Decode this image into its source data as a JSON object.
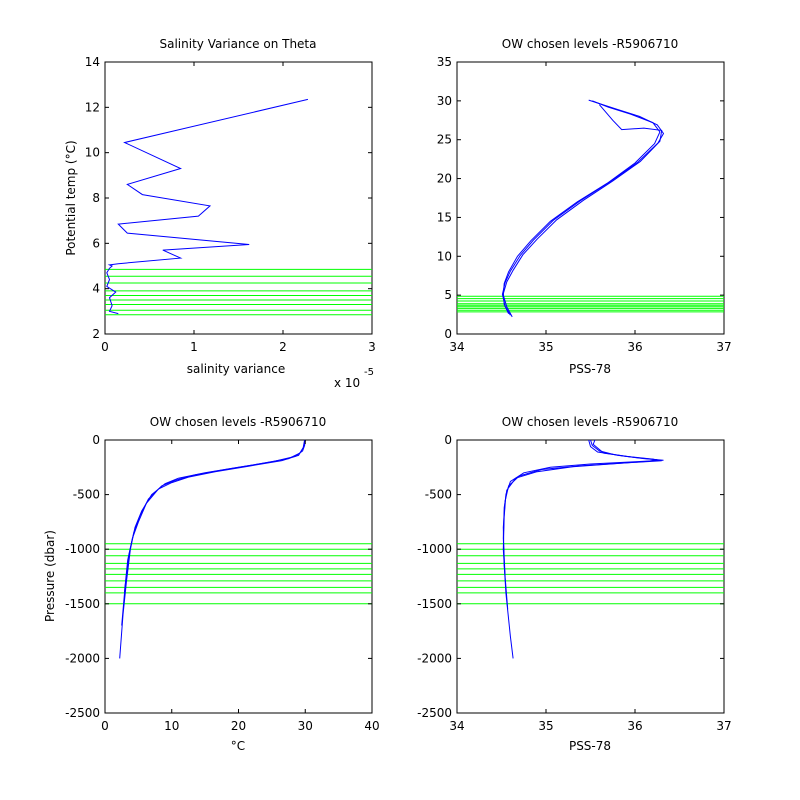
{
  "chart_data": [
    {
      "type": "line",
      "title": "Salinity Variance on Theta",
      "xlabel": "salinity variance",
      "ylabel": "Potential temp (°C)",
      "x_exponent_label": "x 10",
      "x_exponent_power": "-5",
      "xlim": [
        0,
        3
      ],
      "ylim": [
        2,
        14
      ],
      "xticks": [
        0,
        1,
        2,
        3
      ],
      "yticks": [
        2,
        4,
        6,
        8,
        10,
        12,
        14
      ],
      "grid": false,
      "line_color": "#0000ff",
      "hline_color": "#00ff00",
      "hlines": [
        2.85,
        3.05,
        3.3,
        3.5,
        3.7,
        3.9,
        4.25,
        4.55,
        4.85
      ],
      "series": [
        {
          "x": [
            0.15,
            0.05,
            0.08,
            0.05,
            0.12,
            0.02,
            0.05,
            0.02,
            0.05,
            0.08,
            0.05,
            0.15,
            0.85,
            0.65,
            1.62,
            0.25,
            0.15,
            1.05,
            1.18,
            0.42,
            0.25,
            0.85,
            0.22,
            2.28
          ],
          "y": [
            2.9,
            3.0,
            3.25,
            3.6,
            3.85,
            4.1,
            4.4,
            4.7,
            4.9,
            5.0,
            5.05,
            5.1,
            5.35,
            5.7,
            5.95,
            6.45,
            6.85,
            7.2,
            7.65,
            8.15,
            8.6,
            9.3,
            10.45,
            12.35
          ]
        }
      ]
    },
    {
      "type": "line",
      "title": "OW chosen levels -R5906710",
      "xlabel": "PSS-78",
      "ylabel": "",
      "xlim": [
        34,
        37
      ],
      "ylim": [
        0,
        35
      ],
      "xticks": [
        34,
        35,
        36,
        37
      ],
      "yticks": [
        0,
        5,
        10,
        15,
        20,
        25,
        30,
        35
      ],
      "grid": false,
      "line_color": "#0000ff",
      "hline_color": "#00ff00",
      "hlines": [
        2.85,
        3.05,
        3.3,
        3.5,
        3.7,
        3.9,
        4.25,
        4.55,
        4.85
      ],
      "series": [
        {
          "x": [
            34.62,
            34.56,
            34.52,
            34.53,
            34.58,
            34.68,
            34.83,
            35.05,
            35.35,
            35.7,
            36.0,
            36.22,
            36.28,
            36.2,
            35.95,
            35.7,
            35.52
          ],
          "y": [
            2.2,
            3.5,
            5.0,
            6.5,
            8.0,
            10.0,
            12.0,
            14.5,
            17.0,
            19.5,
            22.0,
            24.5,
            26.0,
            27.2,
            28.3,
            29.2,
            30.0
          ]
        },
        {
          "x": [
            34.6,
            34.54,
            34.51,
            34.54,
            34.6,
            34.71,
            34.86,
            35.08,
            35.38,
            35.72,
            36.03,
            36.26,
            36.32,
            36.25,
            36.05,
            35.8,
            35.48
          ],
          "y": [
            2.4,
            3.6,
            5.1,
            6.6,
            8.1,
            10.1,
            12.1,
            14.6,
            17.1,
            19.6,
            22.1,
            24.6,
            25.8,
            26.9,
            28.0,
            28.9,
            30.1
          ]
        },
        {
          "x": [
            34.58,
            34.53,
            34.52,
            34.56,
            34.63,
            34.74,
            34.9,
            35.12,
            35.42,
            35.75,
            36.06,
            36.28,
            36.3,
            36.1,
            35.85,
            35.75,
            35.6
          ],
          "y": [
            2.6,
            3.8,
            5.2,
            6.7,
            8.2,
            10.2,
            12.2,
            14.7,
            17.2,
            19.7,
            22.2,
            24.8,
            26.2,
            26.5,
            26.3,
            27.5,
            29.5
          ]
        }
      ]
    },
    {
      "type": "line",
      "title": "OW chosen levels -R5906710",
      "xlabel": "°C",
      "ylabel": "Pressure (dbar)",
      "xlim": [
        0,
        40
      ],
      "ylim": [
        -2500,
        0
      ],
      "xticks": [
        0,
        10,
        20,
        30,
        40
      ],
      "yticks": [
        0,
        -500,
        -1000,
        -1500,
        -2000,
        -2500
      ],
      "grid": false,
      "line_color": "#0000ff",
      "hline_color": "#00ff00",
      "hlines": [
        -950,
        -1000,
        -1060,
        -1130,
        -1180,
        -1230,
        -1290,
        -1350,
        -1400,
        -1500
      ],
      "series": [
        {
          "x": [
            30,
            29.9,
            29.6,
            28.5,
            25,
            20,
            15,
            11,
            9,
            7,
            5.5,
            4.5,
            3.8,
            3.2,
            2.7,
            2.2
          ],
          "y": [
            0,
            -50,
            -100,
            -150,
            -200,
            -250,
            -300,
            -350,
            -400,
            -500,
            -650,
            -800,
            -1000,
            -1300,
            -1600,
            -2000
          ]
        },
        {
          "x": [
            30,
            29.8,
            29.2,
            27.5,
            23,
            18,
            13.5,
            10.5,
            8.5,
            6.5,
            5.2,
            4.3,
            3.6,
            3.0,
            2.5
          ],
          "y": [
            0,
            -60,
            -120,
            -170,
            -220,
            -270,
            -320,
            -370,
            -420,
            -540,
            -700,
            -850,
            -1050,
            -1350,
            -1700
          ]
        },
        {
          "x": [
            29.9,
            29.7,
            29.0,
            26.5,
            21.5,
            16.5,
            12.5,
            10.0,
            8.0,
            6.2,
            5.0,
            4.1,
            3.4,
            2.9
          ],
          "y": [
            0,
            -70,
            -140,
            -190,
            -240,
            -290,
            -340,
            -390,
            -450,
            -580,
            -750,
            -900,
            -1100,
            -1400
          ]
        }
      ]
    },
    {
      "type": "line",
      "title": "OW chosen levels -R5906710",
      "xlabel": "PSS-78",
      "ylabel": "",
      "xlim": [
        34,
        37
      ],
      "ylim": [
        -2500,
        0
      ],
      "xticks": [
        34,
        35,
        36,
        37
      ],
      "yticks": [
        0,
        -500,
        -1000,
        -1500,
        -2000,
        -2500
      ],
      "grid": false,
      "line_color": "#0000ff",
      "hline_color": "#00ff00",
      "hlines": [
        -950,
        -1000,
        -1060,
        -1130,
        -1180,
        -1230,
        -1290,
        -1350,
        -1400,
        -1500
      ],
      "series": [
        {
          "x": [
            35.5,
            35.52,
            35.6,
            35.8,
            36.1,
            36.32,
            36.0,
            35.5,
            35.05,
            34.75,
            34.6,
            34.55,
            34.53,
            34.52,
            34.55,
            34.6,
            34.63
          ],
          "y": [
            0,
            -50,
            -100,
            -140,
            -170,
            -185,
            -200,
            -220,
            -250,
            -300,
            -380,
            -500,
            -700,
            -1000,
            -1400,
            -1800,
            -2000
          ]
        },
        {
          "x": [
            35.48,
            35.5,
            35.58,
            35.9,
            36.2,
            36.3,
            35.9,
            35.4,
            34.95,
            34.7,
            34.58,
            34.54,
            34.52,
            34.53,
            34.57
          ],
          "y": [
            0,
            -60,
            -110,
            -150,
            -175,
            -190,
            -210,
            -235,
            -270,
            -330,
            -420,
            -560,
            -800,
            -1150,
            -1550
          ]
        },
        {
          "x": [
            35.55,
            35.53,
            35.65,
            36.0,
            36.25,
            36.15,
            35.8,
            35.3,
            34.9,
            34.66,
            34.56,
            34.53,
            34.52,
            34.54
          ],
          "y": [
            0,
            -40,
            -120,
            -160,
            -180,
            -195,
            -215,
            -245,
            -290,
            -350,
            -460,
            -620,
            -900,
            -1250
          ]
        }
      ]
    }
  ]
}
